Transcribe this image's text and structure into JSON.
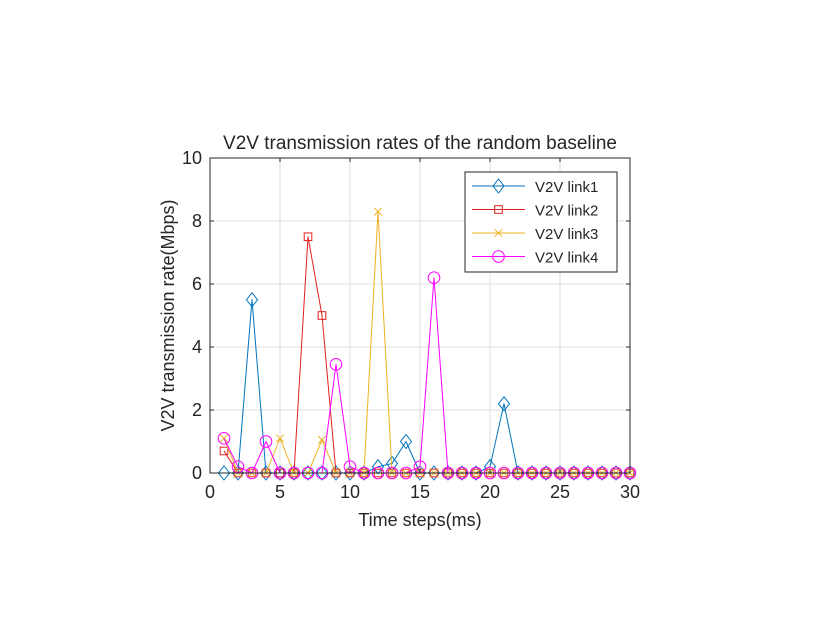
{
  "chart_data": {
    "type": "line",
    "title": "V2V transmission rates of the random baseline",
    "xlabel": "Time steps(ms)",
    "ylabel": "V2V transmission rate(Mbps)",
    "xlim": [
      0,
      30
    ],
    "ylim": [
      0,
      10
    ],
    "xticks": [
      0,
      5,
      10,
      15,
      20,
      25,
      30
    ],
    "yticks": [
      0,
      2,
      4,
      6,
      8,
      10
    ],
    "grid": true,
    "legend_position": "top-right",
    "x": [
      1,
      2,
      3,
      4,
      5,
      6,
      7,
      8,
      9,
      10,
      11,
      12,
      13,
      14,
      15,
      16,
      17,
      18,
      19,
      20,
      21,
      22,
      23,
      24,
      25,
      26,
      27,
      28,
      29,
      30
    ],
    "series": [
      {
        "name": "V2V link1",
        "color": "#0072BD",
        "marker": "diamond",
        "values": [
          0,
          0,
          5.5,
          0,
          0,
          0,
          0,
          0,
          0,
          0,
          0,
          0.2,
          0.3,
          1.0,
          0,
          0,
          0,
          0,
          0,
          0.2,
          2.2,
          0,
          0,
          0,
          0,
          0,
          0,
          0,
          0,
          0
        ]
      },
      {
        "name": "V2V link2",
        "color": "#D95319",
        "stroke": "#E02020",
        "marker": "square",
        "values": [
          0.7,
          0,
          0,
          0,
          0,
          0,
          7.5,
          5.0,
          0,
          0,
          0,
          0,
          0,
          0,
          0,
          0,
          0,
          0,
          0,
          0,
          0,
          0,
          0,
          0,
          0,
          0,
          0,
          0,
          0,
          0
        ]
      },
      {
        "name": "V2V link3",
        "color": "#EDB120",
        "marker": "x",
        "values": [
          1.1,
          0,
          0,
          0,
          1.1,
          0,
          0,
          1.05,
          0,
          0,
          0,
          8.3,
          0,
          0,
          0,
          0,
          0,
          0,
          0,
          0,
          0,
          0,
          0,
          0,
          0,
          0,
          0,
          0,
          0,
          0
        ]
      },
      {
        "name": "V2V link4",
        "color": "#FF00FF",
        "marker": "circle",
        "values": [
          1.1,
          0.2,
          0,
          1.0,
          0,
          0,
          0,
          0,
          3.45,
          0.2,
          0,
          0,
          0,
          0,
          0.2,
          6.2,
          0,
          0,
          0,
          0,
          0,
          0,
          0,
          0,
          0,
          0,
          0,
          0,
          0,
          0
        ]
      }
    ]
  }
}
